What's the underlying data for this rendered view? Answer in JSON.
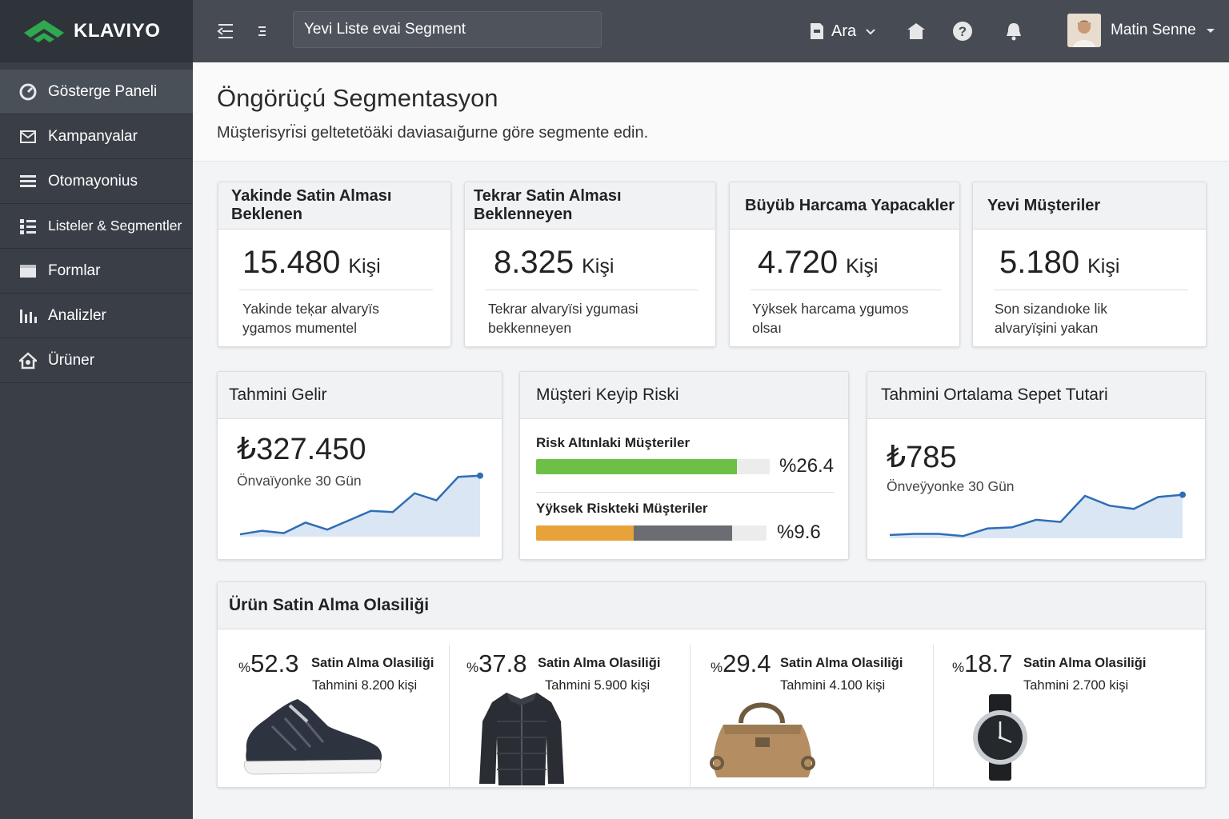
{
  "brand": {
    "name": "KLAVIYO"
  },
  "sidebar": {
    "items": [
      {
        "label": "Gösterge Paneli",
        "icon": "gauge-icon"
      },
      {
        "label": "Kampanyalar",
        "icon": "envelope-icon"
      },
      {
        "label": "Otomayonius",
        "icon": "list-icon"
      },
      {
        "label": "Listeler & Segmentler",
        "icon": "grid-list-icon"
      },
      {
        "label": "Formlar",
        "icon": "form-icon"
      },
      {
        "label": "Analizler",
        "icon": "bar-chart-icon"
      },
      {
        "label": "Ürüner",
        "icon": "house-icon"
      }
    ]
  },
  "topbar": {
    "search_placeholder": "Yevi Liste evai Segment",
    "account_label": "Ara",
    "user_name": "Matin Senne"
  },
  "page": {
    "title": "Öngörüçú Segmentasyon",
    "subtitle": "Müşterisyrı̈si geltetetöäki daviasaığurne göre segmente edin."
  },
  "segments": [
    {
      "title": "Yakinde Satin Alması Beklenen",
      "count": "15.480",
      "unit": "Kişi",
      "desc": "Yakinde teķar alvaryïs ygamos mumentel"
    },
    {
      "title": "Tekrar Satin Alması Beklenneyen",
      "count": "8.325",
      "unit": "Kişi",
      "desc": "Tekrar alvaryïsi ygumasi bekkenneyen"
    },
    {
      "title": "Büyüb Harcama Yapacakler",
      "count": "4.720",
      "unit": "Kişi",
      "desc": "Yÿksek harcama ygumos olsaı"
    },
    {
      "title": "Yevi Müşteriler",
      "count": "5.180",
      "unit": "Kişi",
      "desc": "Son sizandıoke lik alvaryïşini yakan"
    }
  ],
  "revenue": {
    "title": "Tahmini Gelir",
    "value": "₺327.450",
    "period": "Önvaïyonke 30 Gün",
    "chart_data": {
      "type": "area",
      "values": [
        2,
        5,
        3,
        12,
        6,
        14,
        22,
        21,
        37,
        31,
        51,
        52
      ],
      "ylim": [
        0,
        60
      ]
    }
  },
  "churn": {
    "title": "Müşteri Keyip Riski",
    "rows": [
      {
        "label": "Risk Altınlaki Müşteriler",
        "value": "%26.4",
        "fill_fraction": 0.86,
        "colors": [
          "#6dbf45"
        ]
      },
      {
        "label": "Yÿksek Riskteki Müşteriler",
        "value": "%9.6",
        "fill_fraction": 0.85,
        "colors": [
          "#e8a23a",
          "#6b6d72"
        ],
        "split_fraction": 0.5
      }
    ]
  },
  "basket": {
    "title": "Tahmini Ortalama Sepet Tutari",
    "value": "₺785",
    "period": "Önveÿyonke 30 Gün",
    "chart_data": {
      "type": "area",
      "values": [
        3,
        4,
        4,
        2,
        9,
        10,
        17,
        15,
        39,
        30,
        27,
        38,
        40
      ],
      "ylim": [
        0,
        50
      ]
    }
  },
  "products": {
    "title": "Ürün Satin Alma Olasiliği",
    "items": [
      {
        "pct_symbol": "%",
        "pct": "52.3",
        "label": "Satin Alma Olasiliği",
        "estimate": "Tahmini 8.200 kişi",
        "image": "sneaker"
      },
      {
        "pct_symbol": "%",
        "pct": "37.8",
        "label": "Satin Alma Olasiliği",
        "estimate": "Tahmini 5.900 kişi",
        "image": "jacket"
      },
      {
        "pct_symbol": "%",
        "pct": "29.4",
        "label": "Satin Alma Olasiliği",
        "estimate": "Tahmini 4.100 kişi",
        "image": "handbag"
      },
      {
        "pct_symbol": "%",
        "pct": "18.7",
        "label": "Satin Alma Olasiliği",
        "estimate": "Tahmini 2.700 kişi",
        "image": "watch"
      }
    ]
  },
  "colors": {
    "sidebar": "#3a3f47",
    "topbar": "#474c54",
    "chart_line": "#2f6db5",
    "chart_fill": "#dbe6f4"
  }
}
